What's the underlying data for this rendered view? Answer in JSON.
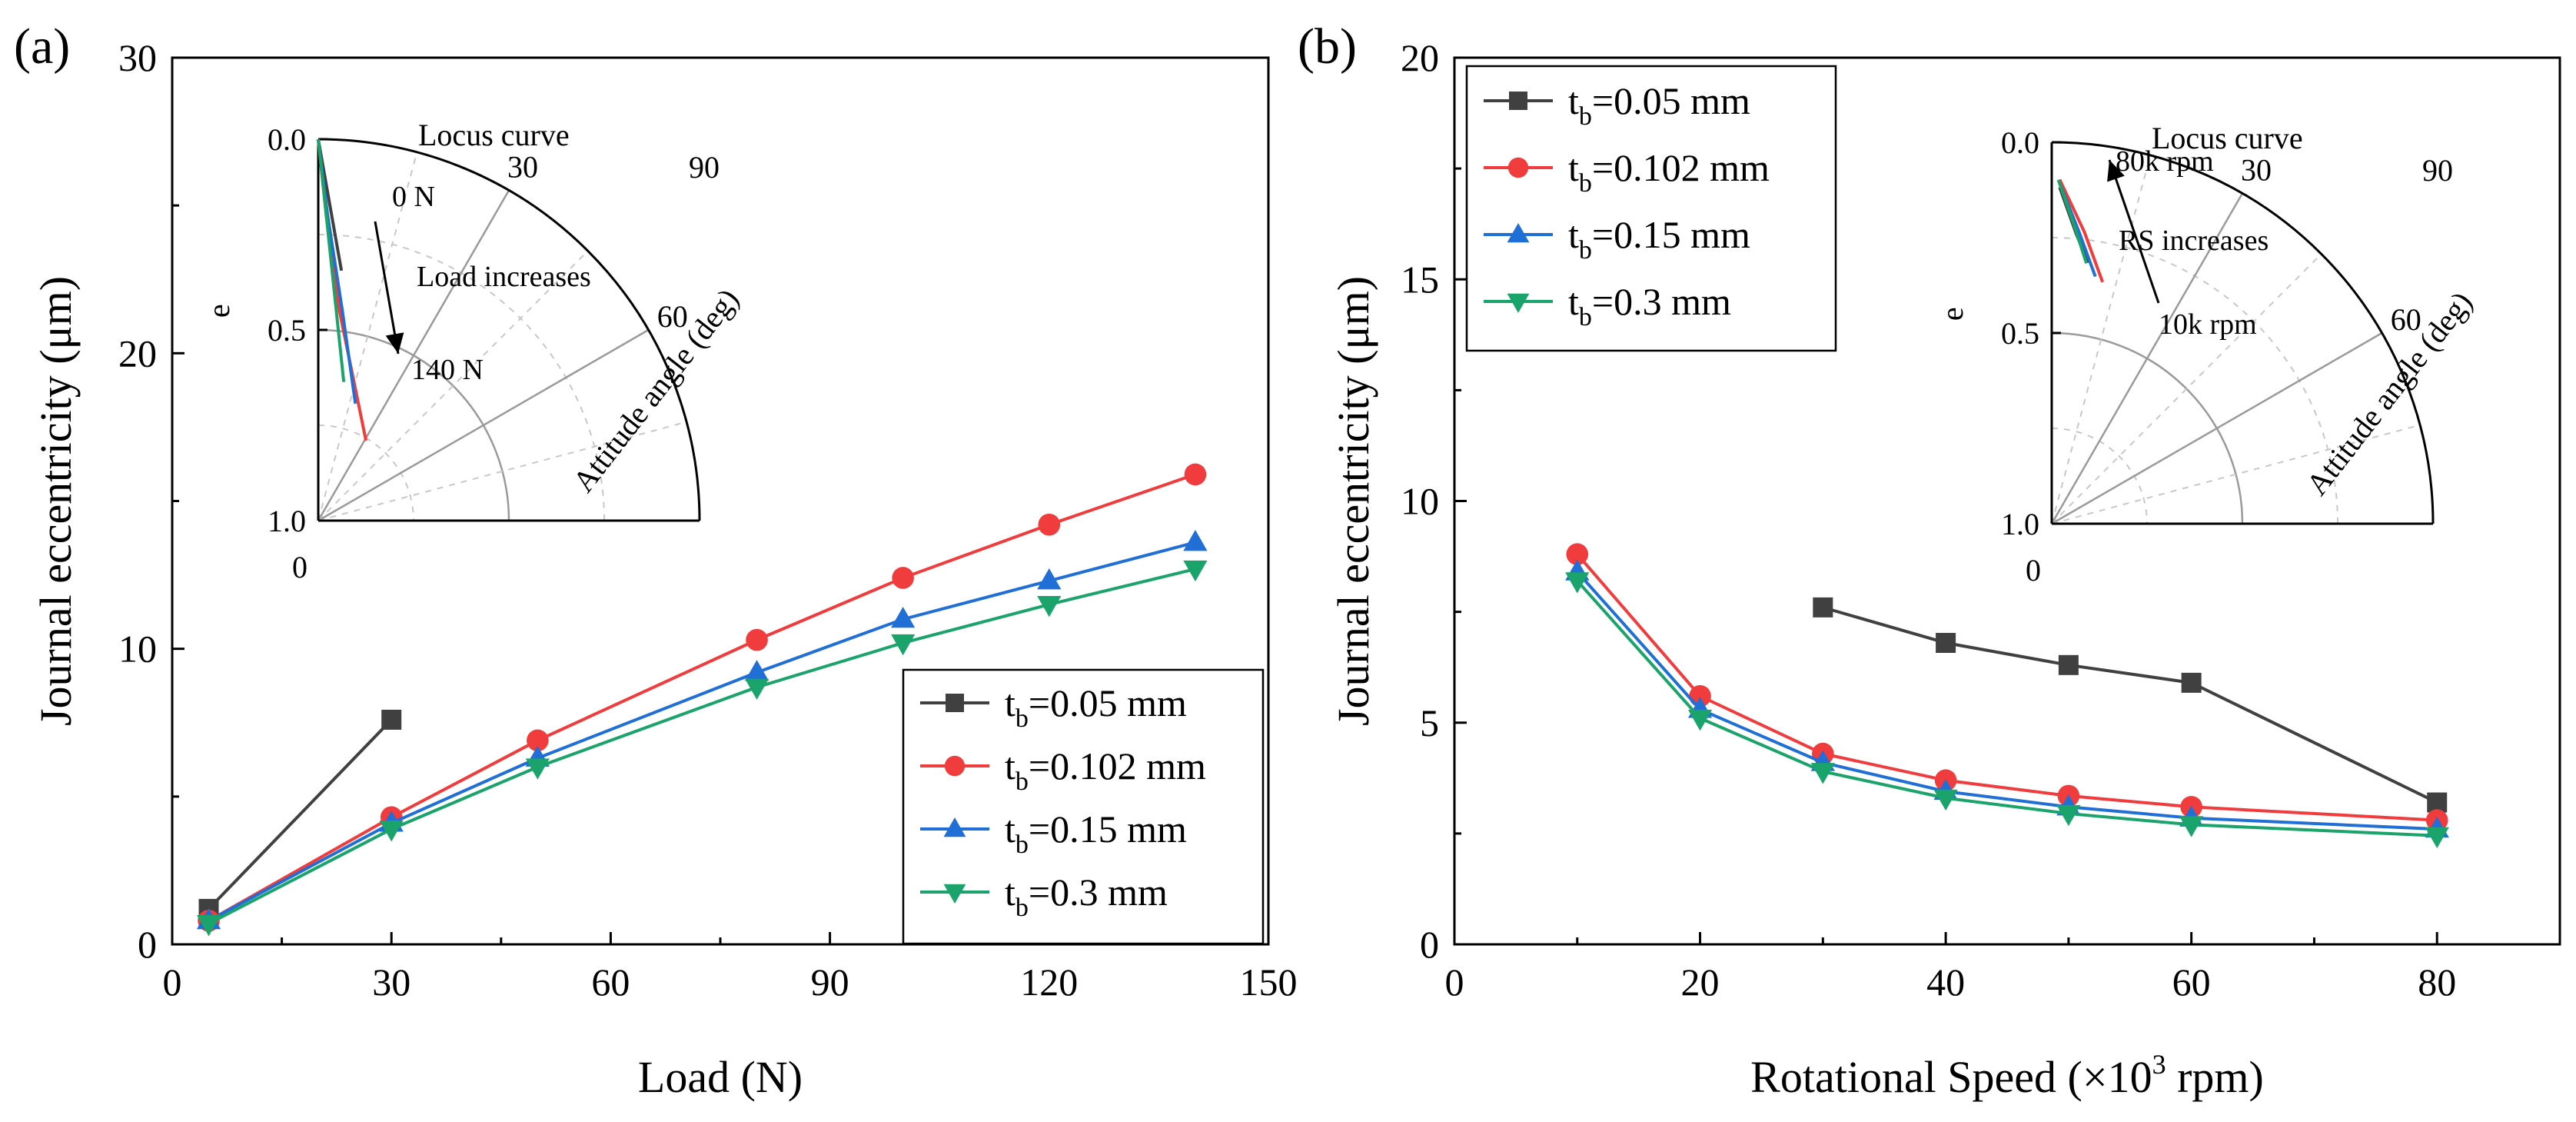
{
  "chart_data": [
    {
      "type": "line",
      "panel_label": "(a)",
      "xlabel": "Load (N)",
      "ylabel": "Journal eccentricity (μm)",
      "xlim": [
        0,
        150
      ],
      "ylim": [
        0,
        30
      ],
      "xticks": [
        "0",
        "30",
        "60",
        "90",
        "120",
        "150"
      ],
      "yticks": [
        "0",
        "10",
        "20",
        "30"
      ],
      "legend_position": "bottom-right",
      "series": [
        {
          "name": "t_b=0.05 mm",
          "legend": {
            "t": "t",
            "sub": "b",
            "rest": "=0.05 mm"
          },
          "color": "#404040",
          "marker": "square",
          "x": [
            5,
            30
          ],
          "y": [
            1.2,
            7.6
          ]
        },
        {
          "name": "t_b=0.102 mm",
          "legend": {
            "t": "t",
            "sub": "b",
            "rest": "=0.102 mm"
          },
          "color": "#f03c3c",
          "marker": "circle",
          "x": [
            5,
            30,
            50,
            80,
            100,
            120,
            140
          ],
          "y": [
            0.8,
            4.3,
            6.9,
            10.3,
            12.4,
            14.2,
            15.9
          ]
        },
        {
          "name": "t_b=0.15 mm",
          "legend": {
            "t": "t",
            "sub": "b",
            "rest": "=0.15 mm"
          },
          "color": "#1f6fd6",
          "marker": "triangle-up",
          "x": [
            5,
            30,
            50,
            80,
            100,
            120,
            140
          ],
          "y": [
            0.8,
            4.1,
            6.3,
            9.2,
            11.0,
            12.3,
            13.6
          ]
        },
        {
          "name": "t_b=0.3 mm",
          "legend": {
            "t": "t",
            "sub": "b",
            "rest": "=0.3 mm"
          },
          "color": "#1aa36a",
          "marker": "triangle-down",
          "x": [
            5,
            30,
            50,
            80,
            100,
            120,
            140
          ],
          "y": [
            0.7,
            3.9,
            6.0,
            8.7,
            10.2,
            11.5,
            12.7
          ]
        }
      ],
      "inset": {
        "type": "polar",
        "title": "Locus curve",
        "radial_label": "e",
        "angle_label": "Attitude angle (deg)",
        "radial_ticks": [
          "0.0",
          "0.5",
          "1.0"
        ],
        "angle_ticks": [
          "0",
          "30",
          "60",
          "90"
        ],
        "annotations": [
          "0 N",
          "Load increases",
          "140 N"
        ],
        "curves": [
          {
            "color": "#404040",
            "points": [
              [
                0.0,
                0
              ],
              [
                0.35,
                10
              ]
            ]
          },
          {
            "color": "#f03c3c",
            "points": [
              [
                0.0,
                0
              ],
              [
                0.2,
                6
              ],
              [
                0.45,
                7
              ],
              [
                0.8,
                9
              ]
            ]
          },
          {
            "color": "#1f6fd6",
            "points": [
              [
                0.0,
                0
              ],
              [
                0.2,
                7
              ],
              [
                0.45,
                8
              ],
              [
                0.7,
                8
              ]
            ]
          },
          {
            "color": "#1aa36a",
            "points": [
              [
                0.0,
                0
              ],
              [
                0.2,
                6
              ],
              [
                0.45,
                6
              ],
              [
                0.64,
                6
              ]
            ]
          }
        ]
      }
    },
    {
      "type": "line",
      "panel_label": "(b)",
      "xlabel": "Rotational Speed (×10",
      "xlabel_sup": "3",
      "xlabel_end": " rpm)",
      "ylabel": "Journal eccentricity (μm)",
      "xlim": [
        0,
        90
      ],
      "ylim": [
        0,
        20
      ],
      "xticks": [
        "0",
        "20",
        "40",
        "60",
        "80"
      ],
      "yticks": [
        "0",
        "5",
        "10",
        "15",
        "20"
      ],
      "legend_position": "top-left",
      "series": [
        {
          "name": "t_b=0.05 mm",
          "legend": {
            "t": "t",
            "sub": "b",
            "rest": "=0.05 mm"
          },
          "color": "#404040",
          "marker": "square",
          "x": [
            30,
            40,
            50,
            60,
            80
          ],
          "y": [
            7.6,
            6.8,
            6.3,
            5.9,
            3.2
          ]
        },
        {
          "name": "t_b=0.102 mm",
          "legend": {
            "t": "t",
            "sub": "b",
            "rest": "=0.102 mm"
          },
          "color": "#f03c3c",
          "marker": "circle",
          "x": [
            10,
            20,
            30,
            40,
            50,
            60,
            80
          ],
          "y": [
            8.8,
            5.6,
            4.3,
            3.7,
            3.35,
            3.1,
            2.8
          ]
        },
        {
          "name": "t_b=0.15 mm",
          "legend": {
            "t": "t",
            "sub": "b",
            "rest": "=0.15 mm"
          },
          "color": "#1f6fd6",
          "marker": "triangle-up",
          "x": [
            10,
            20,
            30,
            40,
            50,
            60,
            80
          ],
          "y": [
            8.4,
            5.3,
            4.1,
            3.45,
            3.1,
            2.85,
            2.6
          ]
        },
        {
          "name": "t_b=0.3 mm",
          "legend": {
            "t": "t",
            "sub": "b",
            "rest": "=0.3 mm"
          },
          "color": "#1aa36a",
          "marker": "triangle-down",
          "x": [
            10,
            20,
            30,
            40,
            50,
            60,
            80
          ],
          "y": [
            8.2,
            5.1,
            3.9,
            3.3,
            2.95,
            2.7,
            2.45
          ]
        }
      ],
      "inset": {
        "type": "polar",
        "title": "Locus curve",
        "radial_label": "e",
        "angle_label": "Attitude angle (deg)",
        "radial_ticks": [
          "0.0",
          "0.5",
          "1.0"
        ],
        "angle_ticks": [
          "0",
          "30",
          "60",
          "90"
        ],
        "annotations": [
          "80k rpm",
          "RS increases",
          "10k rpm"
        ],
        "curves": [
          {
            "color": "#404040",
            "points": [
              [
                0.12,
                10
              ],
              [
                0.25,
                15
              ],
              [
                0.33,
                17
              ]
            ]
          },
          {
            "color": "#f03c3c",
            "points": [
              [
                0.1,
                12
              ],
              [
                0.25,
                20
              ],
              [
                0.39,
                20
              ]
            ]
          },
          {
            "color": "#1f6fd6",
            "points": [
              [
                0.11,
                11
              ],
              [
                0.25,
                17
              ],
              [
                0.37,
                18
              ]
            ]
          },
          {
            "color": "#1aa36a",
            "points": [
              [
                0.1,
                10
              ],
              [
                0.22,
                15
              ],
              [
                0.33,
                16
              ]
            ]
          }
        ]
      }
    }
  ]
}
